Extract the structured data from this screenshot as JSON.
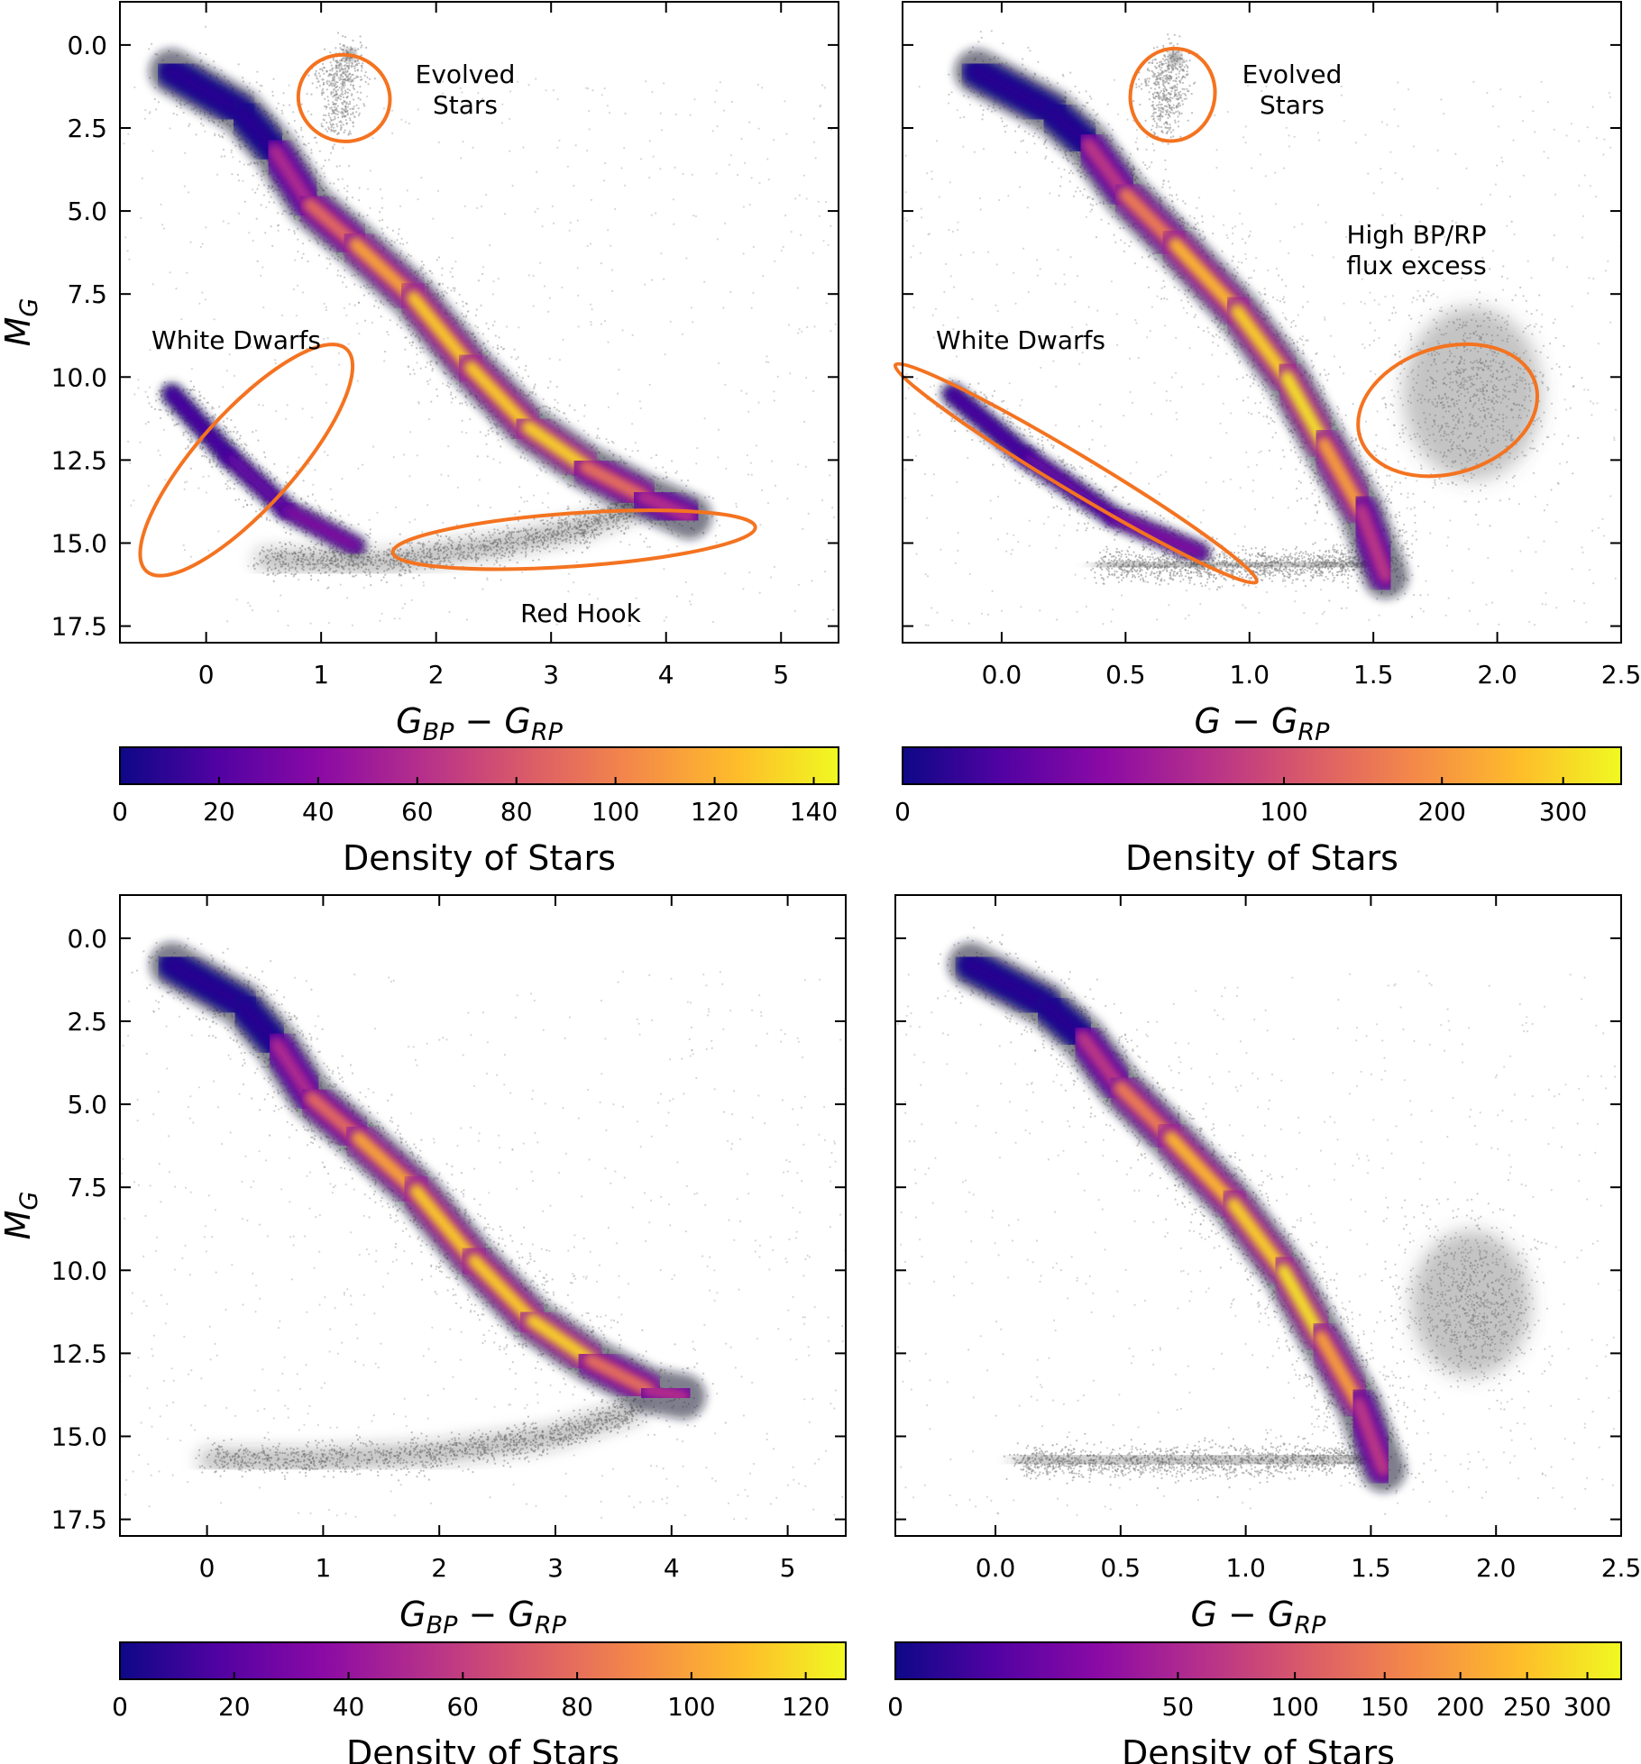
{
  "colors": {
    "ellipse": "#f47320",
    "background_stars": "#8a8a8a",
    "plasma": [
      "#0d0887",
      "#5302a3",
      "#8b0aa5",
      "#b83289",
      "#db5c68",
      "#f48849",
      "#febd2a",
      "#f0f921"
    ]
  },
  "chart_data": [
    {
      "id": "top-left",
      "type": "heatmap",
      "title": "",
      "xlabel": "G_BP − G_RP",
      "ylabel": "M_G",
      "xlim": [
        -0.75,
        5.5
      ],
      "ylim": [
        18.0,
        -1.3
      ],
      "xticks": [
        0,
        1,
        2,
        3,
        4,
        5
      ],
      "xtick_labels": [
        "0",
        "1",
        "2",
        "3",
        "4",
        "5"
      ],
      "yticks": [
        0.0,
        2.5,
        5.0,
        7.5,
        10.0,
        12.5,
        15.0,
        17.5
      ],
      "ytick_labels": [
        "0.0",
        "2.5",
        "5.0",
        "7.5",
        "10.0",
        "12.5",
        "15.0",
        "17.5"
      ],
      "main_sequence": [
        [
          -0.3,
          0.8
        ],
        [
          0.3,
          2.0
        ],
        [
          0.6,
          3.2
        ],
        [
          0.9,
          4.8
        ],
        [
          1.3,
          6.0
        ],
        [
          1.8,
          7.6
        ],
        [
          2.3,
          9.7
        ],
        [
          2.8,
          11.5
        ],
        [
          3.3,
          12.7
        ],
        [
          3.8,
          13.6
        ],
        [
          4.2,
          14.2
        ]
      ],
      "white_dwarf_sequence": [
        [
          -0.3,
          10.5
        ],
        [
          0.2,
          12.4
        ],
        [
          0.7,
          14.0
        ],
        [
          1.3,
          15.1
        ]
      ],
      "faint_branch": [
        [
          0.5,
          15.5
        ],
        [
          1.5,
          15.6
        ],
        [
          2.5,
          15.1
        ],
        [
          3.2,
          14.6
        ],
        [
          3.7,
          14.0
        ]
      ],
      "evolved_clump": [
        [
          1.05,
          1.3
        ],
        [
          1.25,
          0.3
        ],
        [
          1.15,
          2.5
        ]
      ],
      "extra_clouds": [],
      "regions": [
        {
          "label": "Evolved Stars",
          "label_lines": [
            "Evolved",
            "Stars"
          ],
          "cx": 1.2,
          "cy": 1.6,
          "rx": 0.4,
          "ry": 2.6,
          "angle": 14
        },
        {
          "label": "White Dwarfs",
          "label_lines": [
            "White Dwarfs"
          ],
          "cx": 0.35,
          "cy": 12.5,
          "rx": 1.3,
          "ry": 2.9,
          "angle": -48
        },
        {
          "label": "Red Hook",
          "label_lines": [
            "Red Hook"
          ],
          "cx": 3.2,
          "cy": 14.9,
          "rx": 1.58,
          "ry": 1.6,
          "angle": -4
        }
      ],
      "colorbar": {
        "label": "Density of Stars",
        "ticks": [
          0,
          20,
          40,
          60,
          80,
          100,
          120,
          140
        ],
        "tick_labels": [
          "0",
          "20",
          "40",
          "60",
          "80",
          "100",
          "120",
          "140"
        ],
        "max": 145
      }
    },
    {
      "id": "top-right",
      "type": "heatmap",
      "title": "",
      "xlabel": "G − G_RP",
      "ylabel": "",
      "xlim": [
        -0.4,
        2.5
      ],
      "ylim": [
        18.0,
        -1.3
      ],
      "xticks": [
        0.0,
        0.5,
        1.0,
        1.5,
        2.0,
        2.5
      ],
      "xtick_labels": [
        "0.0",
        "0.5",
        "1.0",
        "1.5",
        "2.0",
        "2.5"
      ],
      "yticks": [
        0.0,
        2.5,
        5.0,
        7.5,
        10.0,
        12.5,
        15.0,
        17.5
      ],
      "ytick_labels": [],
      "main_sequence": [
        [
          -0.1,
          0.8
        ],
        [
          0.2,
          2.0
        ],
        [
          0.35,
          3.0
        ],
        [
          0.5,
          4.5
        ],
        [
          0.7,
          6.0
        ],
        [
          0.95,
          8.0
        ],
        [
          1.15,
          10.0
        ],
        [
          1.3,
          12.0
        ],
        [
          1.45,
          14.0
        ],
        [
          1.55,
          16.0
        ]
      ],
      "white_dwarf_sequence": [
        [
          -0.2,
          10.5
        ],
        [
          0.1,
          12.4
        ],
        [
          0.45,
          14.2
        ],
        [
          0.8,
          15.3
        ]
      ],
      "faint_branch": [
        [
          0.4,
          15.7
        ],
        [
          1.0,
          15.7
        ],
        [
          1.5,
          15.6
        ]
      ],
      "evolved_clump": [
        [
          0.6,
          1.3
        ],
        [
          0.7,
          0.4
        ],
        [
          0.65,
          2.5
        ]
      ],
      "extra_clouds": [
        [
          1.9,
          10.5,
          0.28,
          2.6
        ]
      ],
      "regions": [
        {
          "label": "Evolved Stars",
          "label_lines": [
            "Evolved",
            "Stars"
          ],
          "cx": 0.69,
          "cy": 1.5,
          "rx": 0.17,
          "ry": 2.8,
          "angle": 14
        },
        {
          "label": "High BP/RP flux excess",
          "label_lines": [
            "High BP/RP",
            "flux excess"
          ],
          "cx": 1.8,
          "cy": 11.0,
          "rx": 0.37,
          "ry": 3.8,
          "angle": -17
        },
        {
          "label": "White Dwarfs",
          "label_lines": [
            "White Dwarfs"
          ],
          "cx": 0.3,
          "cy": 12.9,
          "rx": 0.85,
          "ry": 1.1,
          "angle": 31
        }
      ],
      "colorbar": {
        "label": "Density of Stars",
        "ticks": [
          0,
          100,
          200,
          300
        ],
        "tick_labels": [
          "0",
          "100",
          "200",
          "300"
        ],
        "max": 355,
        "scale": "sqrt"
      }
    },
    {
      "id": "bottom-left",
      "type": "heatmap",
      "title": "",
      "xlabel": "G_BP − G_RP",
      "ylabel": "M_G",
      "xlim": [
        -0.75,
        5.5
      ],
      "ylim": [
        18.0,
        -1.3
      ],
      "xticks": [
        0,
        1,
        2,
        3,
        4,
        5
      ],
      "xtick_labels": [
        "0",
        "1",
        "2",
        "3",
        "4",
        "5"
      ],
      "yticks": [
        0.0,
        2.5,
        5.0,
        7.5,
        10.0,
        12.5,
        15.0,
        17.5
      ],
      "ytick_labels": [
        "0.0",
        "2.5",
        "5.0",
        "7.5",
        "10.0",
        "12.5",
        "15.0",
        "17.5"
      ],
      "main_sequence": [
        [
          -0.3,
          0.8
        ],
        [
          0.3,
          2.0
        ],
        [
          0.6,
          3.2
        ],
        [
          0.9,
          4.8
        ],
        [
          1.3,
          6.0
        ],
        [
          1.8,
          7.6
        ],
        [
          2.3,
          9.7
        ],
        [
          2.8,
          11.5
        ],
        [
          3.3,
          12.7
        ],
        [
          3.8,
          13.6
        ],
        [
          4.1,
          13.8
        ]
      ],
      "white_dwarf_sequence": [],
      "faint_branch": [
        [
          0.0,
          15.7
        ],
        [
          1.0,
          15.7
        ],
        [
          2.0,
          15.5
        ],
        [
          3.0,
          15.0
        ],
        [
          3.7,
          14.2
        ]
      ],
      "evolved_clump": [],
      "extra_clouds": [],
      "regions": [],
      "colorbar": {
        "label": "Density of Stars",
        "ticks": [
          0,
          20,
          40,
          60,
          80,
          100,
          120
        ],
        "tick_labels": [
          "0",
          "20",
          "40",
          "60",
          "80",
          "100",
          "120"
        ],
        "max": 127
      }
    },
    {
      "id": "bottom-right",
      "type": "heatmap",
      "title": "",
      "xlabel": "G − G_RP",
      "ylabel": "",
      "xlim": [
        -0.4,
        2.5
      ],
      "ylim": [
        18.0,
        -1.3
      ],
      "xticks": [
        0.0,
        0.5,
        1.0,
        1.5,
        2.0,
        2.5
      ],
      "xtick_labels": [
        "0.0",
        "0.5",
        "1.0",
        "1.5",
        "2.0",
        "2.5"
      ],
      "yticks": [
        0.0,
        2.5,
        5.0,
        7.5,
        10.0,
        12.5,
        15.0,
        17.5
      ],
      "ytick_labels": [],
      "main_sequence": [
        [
          -0.1,
          0.8
        ],
        [
          0.2,
          2.0
        ],
        [
          0.35,
          3.0
        ],
        [
          0.5,
          4.5
        ],
        [
          0.7,
          6.0
        ],
        [
          0.95,
          8.0
        ],
        [
          1.15,
          10.0
        ],
        [
          1.3,
          12.0
        ],
        [
          1.45,
          14.0
        ],
        [
          1.55,
          16.0
        ]
      ],
      "white_dwarf_sequence": [],
      "faint_branch": [
        [
          0.1,
          15.8
        ],
        [
          0.8,
          15.8
        ],
        [
          1.5,
          15.6
        ]
      ],
      "evolved_clump": [],
      "extra_clouds": [
        [
          1.9,
          11.0,
          0.24,
          2.2
        ]
      ],
      "regions": [],
      "colorbar": {
        "label": "Density of Stars",
        "ticks": [
          0,
          50,
          100,
          150,
          200,
          250,
          300
        ],
        "tick_labels": [
          "0",
          "50",
          "100",
          "150",
          "200",
          "250",
          "300"
        ],
        "max": 330,
        "scale": "sqrt"
      }
    }
  ]
}
